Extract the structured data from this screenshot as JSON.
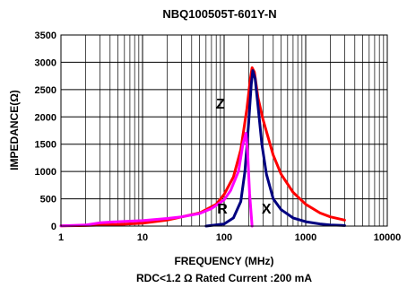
{
  "chart_data": {
    "type": "line",
    "title": "NBQ100505T-601Y-N",
    "xlabel": "FREQUENCY (MHz)",
    "ylabel": "IMPEDANCE(Ω)",
    "footer": "RDC<1.2 Ω Rated Current :200 mA",
    "x_scale": "log",
    "xlim": [
      1,
      10000
    ],
    "ylim": [
      0,
      3500
    ],
    "x_ticks": [
      "1",
      "10",
      "100",
      "1000",
      "10000"
    ],
    "y_ticks": [
      "0",
      "500",
      "1000",
      "1500",
      "2000",
      "2500",
      "3000",
      "3500"
    ],
    "grid": true,
    "series": [
      {
        "name": "Z",
        "color": "#ff0000",
        "x": [
          1,
          2,
          5,
          10,
          20,
          50,
          80,
          100,
          130,
          160,
          190,
          210,
          220,
          235,
          260,
          300,
          400,
          500,
          700,
          1000,
          1500,
          2000,
          3000
        ],
        "y": [
          5,
          10,
          30,
          55,
          110,
          240,
          400,
          580,
          900,
          1400,
          2150,
          2700,
          2900,
          2820,
          2350,
          1950,
          1300,
          950,
          620,
          400,
          240,
          170,
          110
        ]
      },
      {
        "name": "X",
        "color": "#000080",
        "x": [
          60,
          100,
          130,
          160,
          180,
          200,
          215,
          225,
          240,
          260,
          290,
          330,
          400,
          500,
          700,
          1000,
          1500,
          2000,
          3000
        ],
        "y": [
          0,
          40,
          150,
          450,
          1000,
          1900,
          2600,
          2850,
          2700,
          2200,
          1500,
          950,
          500,
          300,
          150,
          80,
          40,
          20,
          10
        ]
      },
      {
        "name": "R",
        "color": "#ff00ff",
        "x": [
          1,
          2,
          3,
          5,
          10,
          20,
          30,
          50,
          70,
          100,
          120,
          150,
          170,
          185,
          195,
          205,
          220
        ],
        "y": [
          5,
          20,
          60,
          80,
          100,
          140,
          170,
          230,
          320,
          480,
          650,
          1000,
          1500,
          1700,
          1300,
          600,
          0
        ]
      }
    ],
    "annotations": [
      {
        "text": "Z",
        "x": 90,
        "y": 2150
      },
      {
        "text": "R",
        "x": 95,
        "y": 230
      },
      {
        "text": "X",
        "x": 330,
        "y": 230
      }
    ]
  }
}
